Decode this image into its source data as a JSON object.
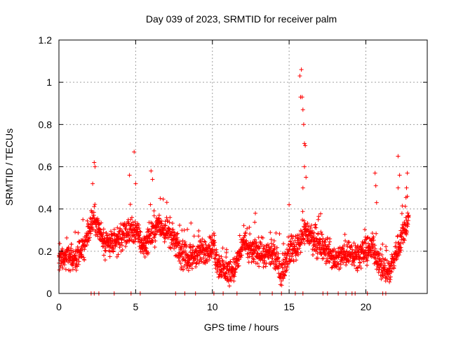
{
  "chart_data": {
    "type": "scatter",
    "title": "Day 039 of 2023, SRMTID for receiver palm",
    "xlabel": "GPS time / hours",
    "ylabel": "SRMTID / TECUs",
    "xlim": [
      0,
      24
    ],
    "ylim": [
      0,
      1.2
    ],
    "x_ticks": [
      "0",
      "5",
      "10",
      "15",
      "20"
    ],
    "x_tick_values": [
      0,
      5,
      10,
      15,
      20
    ],
    "y_ticks": [
      "0",
      "0.2",
      "0.4",
      "0.6",
      "0.8",
      "1",
      "1.2"
    ],
    "y_tick_values": [
      0,
      0.2,
      0.4,
      0.6,
      0.8,
      1.0,
      1.2
    ],
    "grid": true,
    "marker": "plus",
    "colors": {
      "marker": "#ff0000",
      "grid": "#a0a0a0",
      "axis": "#000000"
    },
    "series": [
      {
        "name": "SRMTID",
        "profile_x": [
          0,
          0.5,
          1,
          1.5,
          2,
          2.3,
          2.6,
          3,
          3.5,
          4,
          4.5,
          5,
          5.5,
          6,
          6.5,
          7,
          7.5,
          8,
          8.5,
          9,
          9.5,
          10,
          10.5,
          11,
          11.5,
          12,
          12.5,
          13,
          13.5,
          14,
          14.5,
          15,
          15.5,
          16,
          16.5,
          17,
          17.5,
          18,
          18.5,
          19,
          19.5,
          20,
          20.5,
          21,
          21.5,
          22,
          22.5,
          22.8
        ],
        "profile_y": [
          0.15,
          0.18,
          0.16,
          0.2,
          0.3,
          0.36,
          0.3,
          0.22,
          0.24,
          0.26,
          0.28,
          0.3,
          0.22,
          0.28,
          0.32,
          0.3,
          0.25,
          0.18,
          0.17,
          0.18,
          0.2,
          0.22,
          0.12,
          0.1,
          0.12,
          0.24,
          0.2,
          0.2,
          0.18,
          0.18,
          0.1,
          0.2,
          0.22,
          0.3,
          0.26,
          0.22,
          0.2,
          0.16,
          0.18,
          0.2,
          0.18,
          0.2,
          0.22,
          0.12,
          0.1,
          0.2,
          0.3,
          0.36
        ],
        "spikes": [
          {
            "x": 2.2,
            "y": 0.52
          },
          {
            "x": 2.3,
            "y": 0.62
          },
          {
            "x": 2.35,
            "y": 0.6
          },
          {
            "x": 4.6,
            "y": 0.56
          },
          {
            "x": 4.9,
            "y": 0.67
          },
          {
            "x": 5.0,
            "y": 0.52
          },
          {
            "x": 6.0,
            "y": 0.58
          },
          {
            "x": 6.1,
            "y": 0.54
          },
          {
            "x": 6.6,
            "y": 0.45
          },
          {
            "x": 12.8,
            "y": 0.38
          },
          {
            "x": 15.0,
            "y": 0.42
          },
          {
            "x": 15.7,
            "y": 1.03
          },
          {
            "x": 15.8,
            "y": 1.06
          },
          {
            "x": 15.85,
            "y": 0.93
          },
          {
            "x": 15.75,
            "y": 0.93
          },
          {
            "x": 15.9,
            "y": 0.87
          },
          {
            "x": 15.95,
            "y": 0.8
          },
          {
            "x": 16.0,
            "y": 0.71
          },
          {
            "x": 16.05,
            "y": 0.7
          },
          {
            "x": 16.0,
            "y": 0.6
          },
          {
            "x": 16.1,
            "y": 0.55
          },
          {
            "x": 15.9,
            "y": 0.5
          },
          {
            "x": 20.6,
            "y": 0.57
          },
          {
            "x": 20.65,
            "y": 0.51
          },
          {
            "x": 20.7,
            "y": 0.43
          },
          {
            "x": 22.1,
            "y": 0.65
          },
          {
            "x": 22.2,
            "y": 0.56
          },
          {
            "x": 22.1,
            "y": 0.5
          },
          {
            "x": 22.7,
            "y": 0.57
          },
          {
            "x": 22.65,
            "y": 0.5
          },
          {
            "x": 22.7,
            "y": 0.46
          }
        ],
        "zero_points_x": [
          2.1,
          2.3,
          2.6,
          3.6,
          4.7,
          5.3,
          7.6,
          8.2,
          8.9,
          10.1,
          10.7,
          11.6,
          13.1,
          13.9,
          14.5,
          15.4,
          15.9,
          17.2,
          17.5,
          18.2,
          18.7,
          19.1,
          19.3,
          20.1,
          21.1,
          21.3
        ]
      }
    ]
  }
}
